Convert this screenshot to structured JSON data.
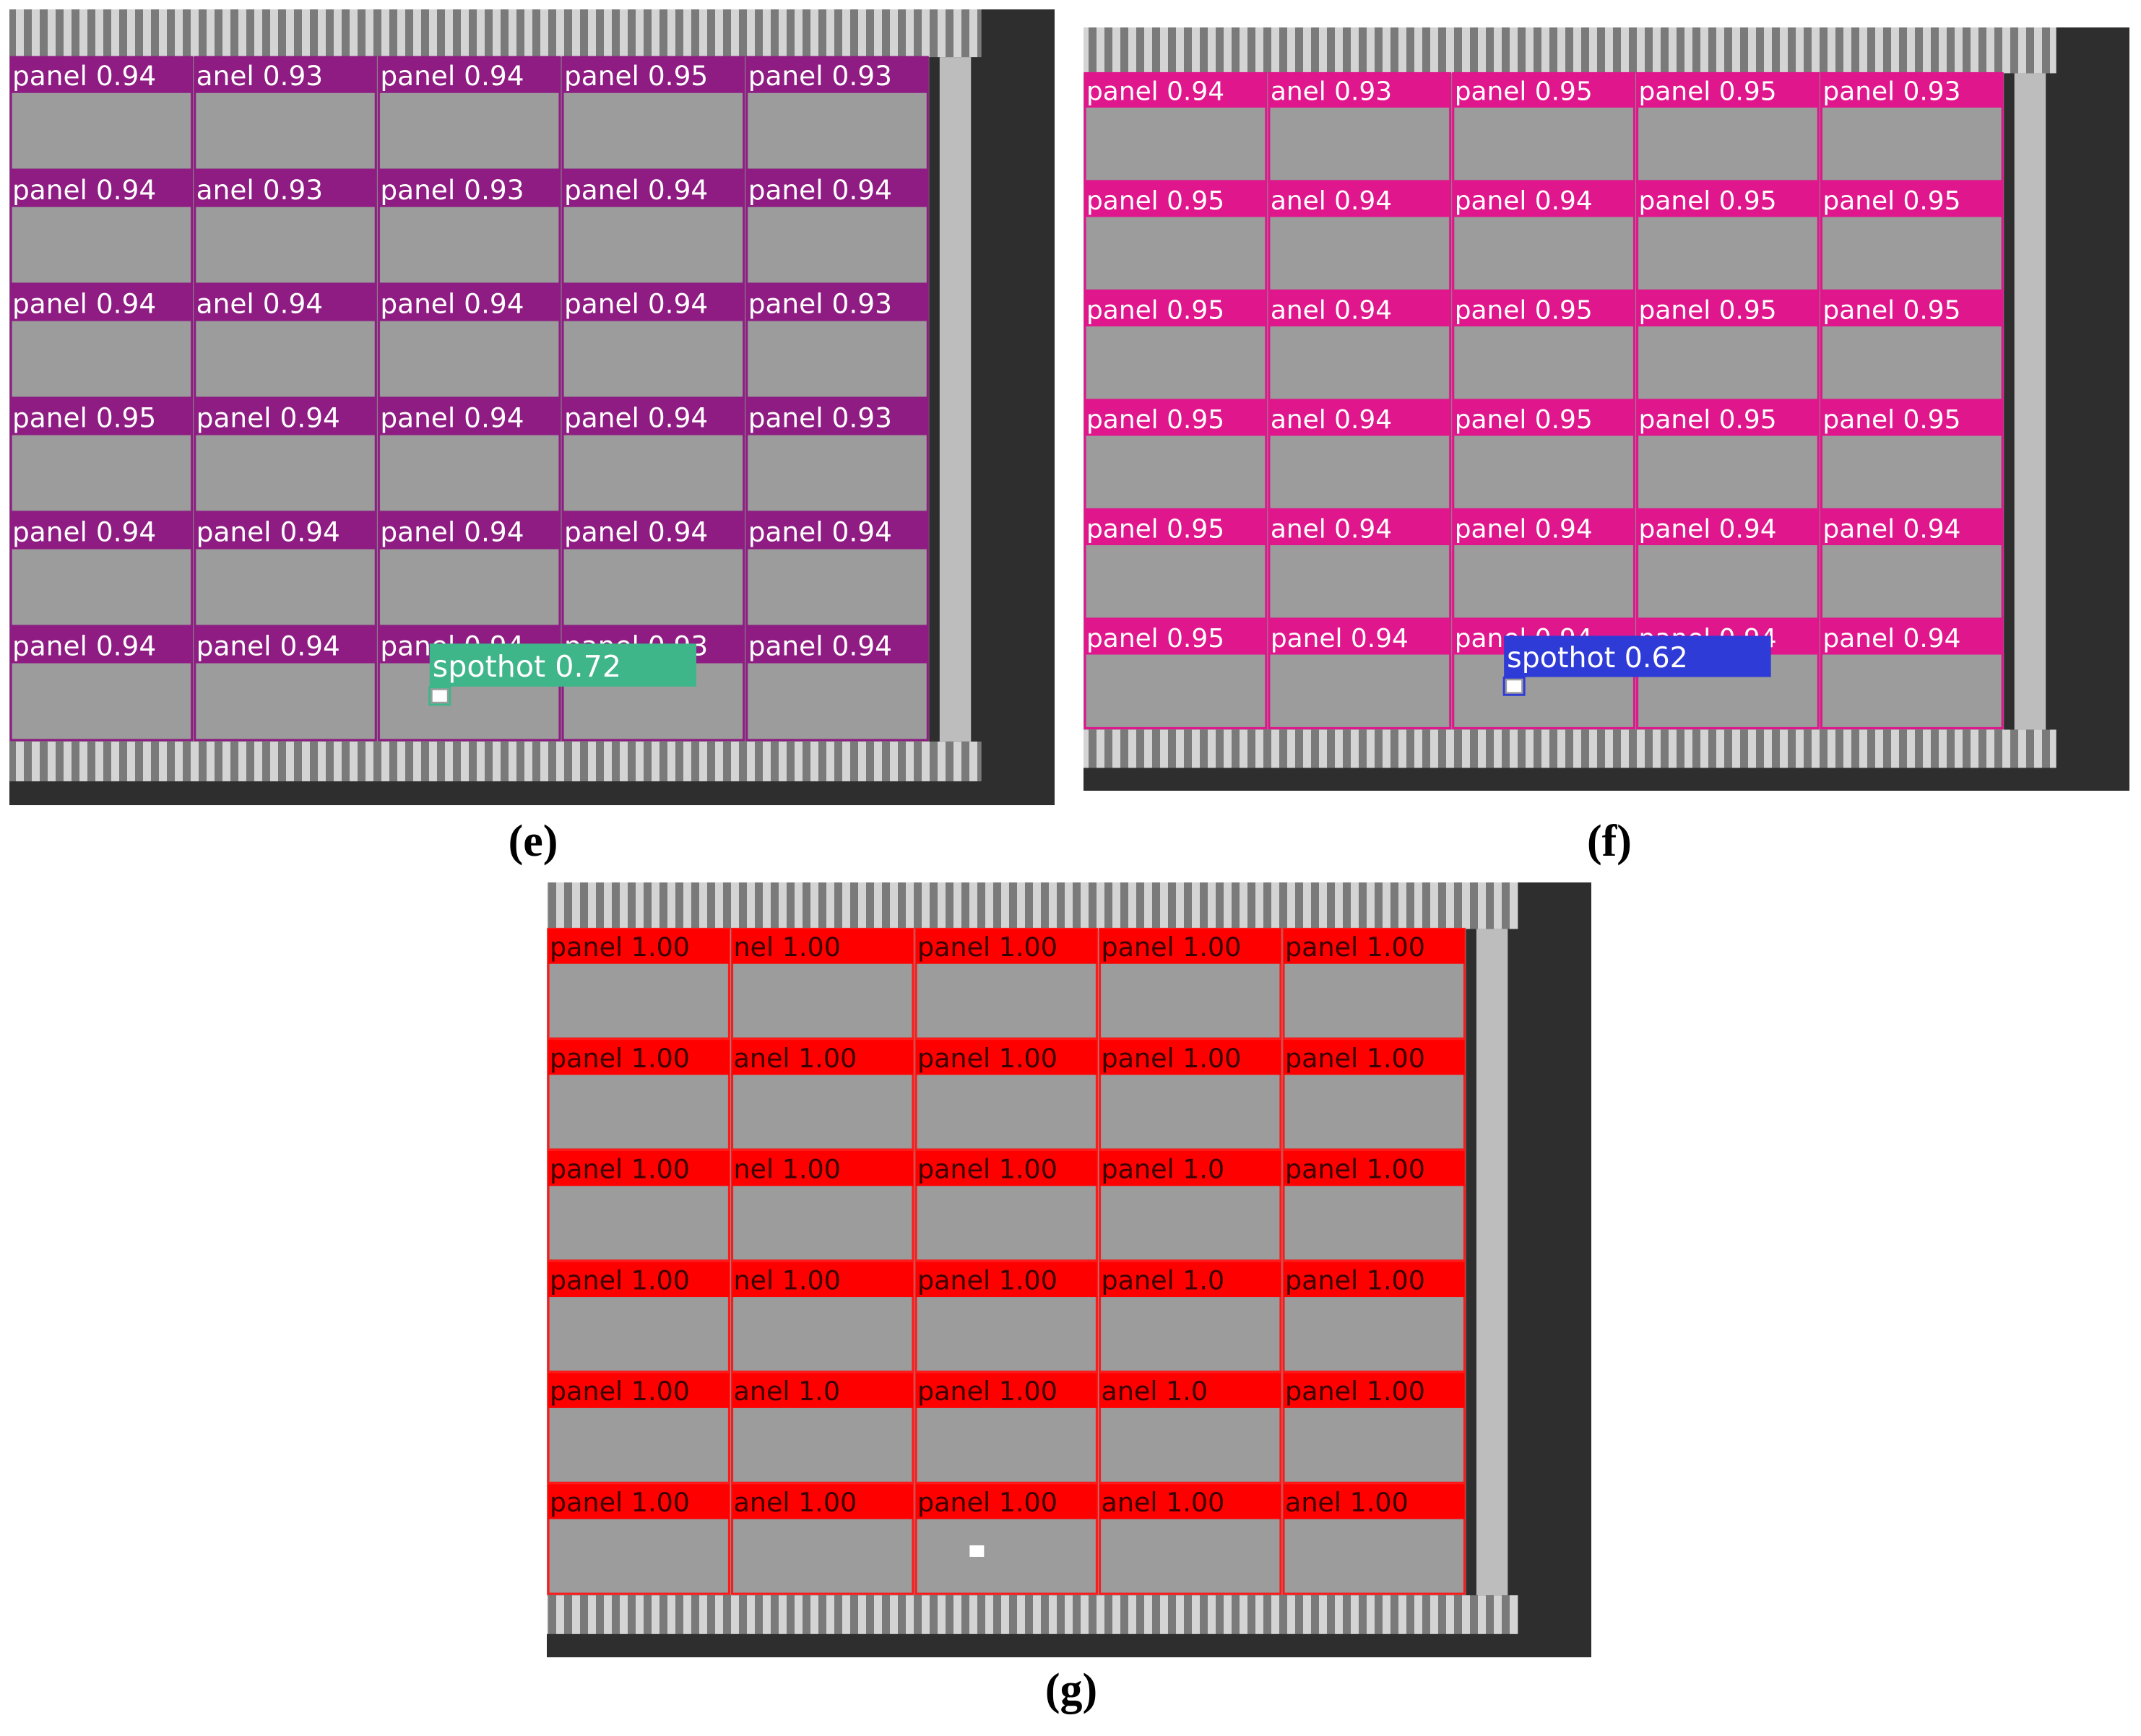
{
  "panels": [
    {
      "caption": "(e)",
      "spot": "spothot 0.72",
      "rows": [
        [
          "panel 0.94",
          "anel 0.93",
          "panel 0.94",
          "panel 0.95",
          "panel 0.93"
        ],
        [
          "panel 0.94",
          "anel 0.93",
          "panel 0.93",
          "panel 0.94",
          "panel 0.94"
        ],
        [
          "panel 0.94",
          "anel 0.94",
          "panel 0.94",
          "panel 0.94",
          "panel 0.93"
        ],
        [
          "panel 0.95",
          "panel 0.94",
          "panel 0.94",
          "panel 0.94",
          "panel 0.93"
        ],
        [
          "panel 0.94",
          "panel 0.94",
          "panel 0.94",
          "panel 0.94",
          "panel 0.94"
        ],
        [
          "panel 0.94",
          "panel 0.94",
          "panel 0.94",
          "panel 0.93",
          "panel 0.94"
        ]
      ]
    },
    {
      "caption": "(f)",
      "spot": "spothot 0.62",
      "rows": [
        [
          "panel 0.94",
          "anel 0.93",
          "panel 0.95",
          "panel 0.95",
          "panel 0.93"
        ],
        [
          "panel 0.95",
          "anel 0.94",
          "panel 0.94",
          "panel 0.95",
          "panel 0.95"
        ],
        [
          "panel 0.95",
          "anel 0.94",
          "panel 0.95",
          "panel 0.95",
          "panel 0.95"
        ],
        [
          "panel 0.95",
          "anel 0.94",
          "panel 0.95",
          "panel 0.95",
          "panel 0.95"
        ],
        [
          "panel 0.95",
          "anel 0.94",
          "panel 0.94",
          "panel 0.94",
          "panel 0.94"
        ],
        [
          "panel 0.95",
          "panel 0.94",
          "panel 0.94",
          "panel 0.94",
          "panel 0.94"
        ]
      ]
    },
    {
      "caption": "(g)",
      "rows": [
        [
          "panel 1.00",
          "nel 1.00",
          "panel 1.00",
          "panel 1.00",
          "panel 1.00"
        ],
        [
          "panel 1.00",
          "anel 1.00",
          "panel 1.00",
          "panel 1.00",
          "panel 1.00"
        ],
        [
          "panel 1.00",
          "nel 1.00",
          "panel 1.00",
          "panel 1.0",
          "panel 1.00"
        ],
        [
          "panel 1.00",
          "nel 1.00",
          "panel 1.00",
          "panel 1.0",
          "panel 1.00"
        ],
        [
          "panel 1.00",
          "anel 1.0",
          "panel 1.00",
          "anel 1.0",
          "panel 1.00"
        ],
        [
          "panel 1.00",
          "anel 1.00",
          "panel 1.00",
          "anel 1.00",
          "anel 1.00"
        ]
      ]
    }
  ]
}
